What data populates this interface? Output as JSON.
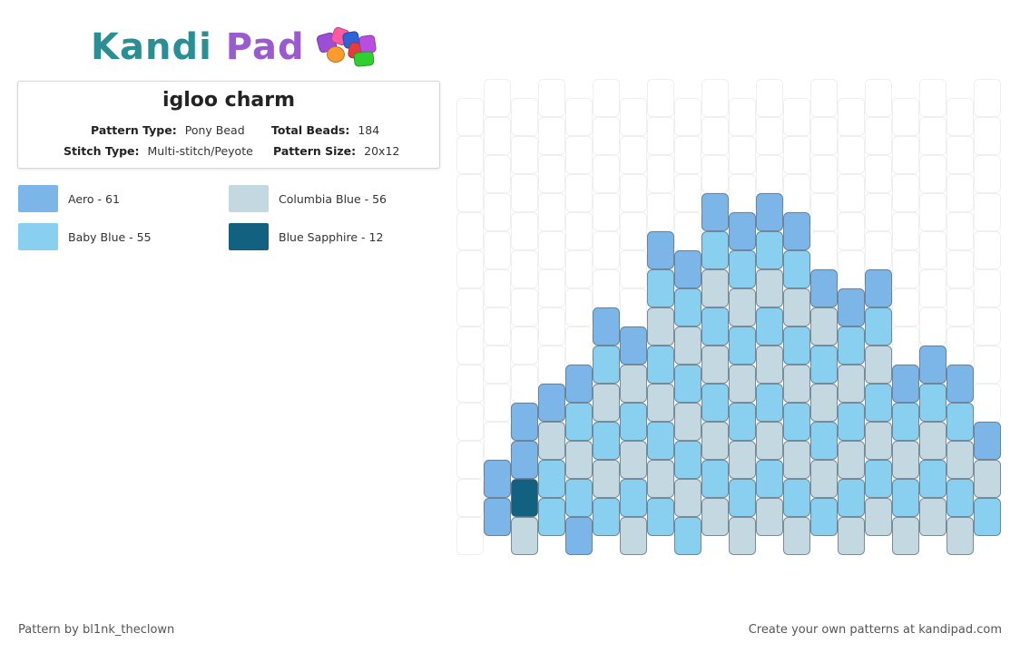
{
  "logo": {
    "text_part1": "Kandi",
    "text_part2": "Pad"
  },
  "pattern": {
    "title": "igloo charm",
    "pattern_type_label": "Pattern Type:",
    "pattern_type": "Pony Bead",
    "total_beads_label": "Total Beads:",
    "total_beads": "184",
    "stitch_type_label": "Stitch Type:",
    "stitch_type": "Multi-stitch/Peyote",
    "pattern_size_label": "Pattern Size:",
    "pattern_size": "20x12"
  },
  "legend": [
    {
      "label": "Aero - 61",
      "color": "#7cb6e8"
    },
    {
      "label": "Columbia Blue - 56",
      "color": "#c4d8e2"
    },
    {
      "label": "Baby Blue - 55",
      "color": "#89cff0"
    },
    {
      "label": "Blue Sapphire - 12",
      "color": "#126180"
    }
  ],
  "footer": {
    "author": "Pattern by bl1nk_theclown",
    "promo": "Create your own patterns at kandipad.com"
  }
}
